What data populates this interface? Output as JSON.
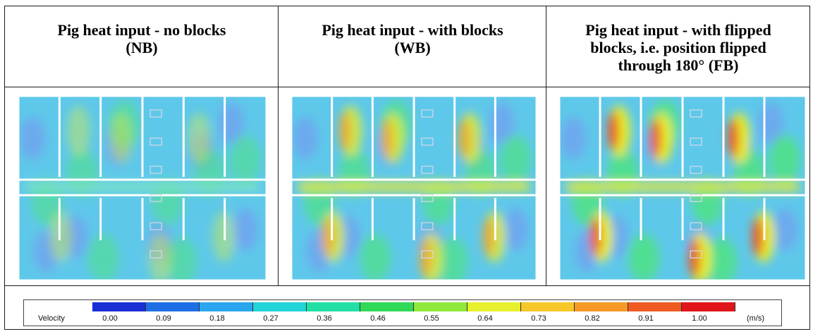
{
  "headers": [
    {
      "line1": "Pig heat input - no blocks",
      "line2": "(NB)",
      "line3": ""
    },
    {
      "line1": "Pig heat input - with blocks",
      "line2": "(WB)",
      "line3": ""
    },
    {
      "line1": "Pig heat input - with flipped",
      "line2": "blocks, i.e. position flipped",
      "line3": "through 180° (FB)"
    }
  ],
  "panels": [
    {
      "id": "NB",
      "hot_level": 0.15
    },
    {
      "id": "WB",
      "hot_level": 0.55
    },
    {
      "id": "FB",
      "hot_level": 0.9
    }
  ],
  "legend": {
    "title": "Velocity",
    "unit": "(m/s)",
    "ticks": [
      "0.00",
      "0.09",
      "0.18",
      "0.27",
      "0.36",
      "0.46",
      "0.55",
      "0.64",
      "0.73",
      "0.82",
      "0.91",
      "1.00"
    ],
    "colors": [
      "#1a2fd6",
      "#1e6fe6",
      "#2aa6ef",
      "#22d3d8",
      "#22e0a5",
      "#2fd957",
      "#8fe83a",
      "#e6f02c",
      "#f5c728",
      "#f59a25",
      "#ef5b22",
      "#e0161a"
    ]
  }
}
